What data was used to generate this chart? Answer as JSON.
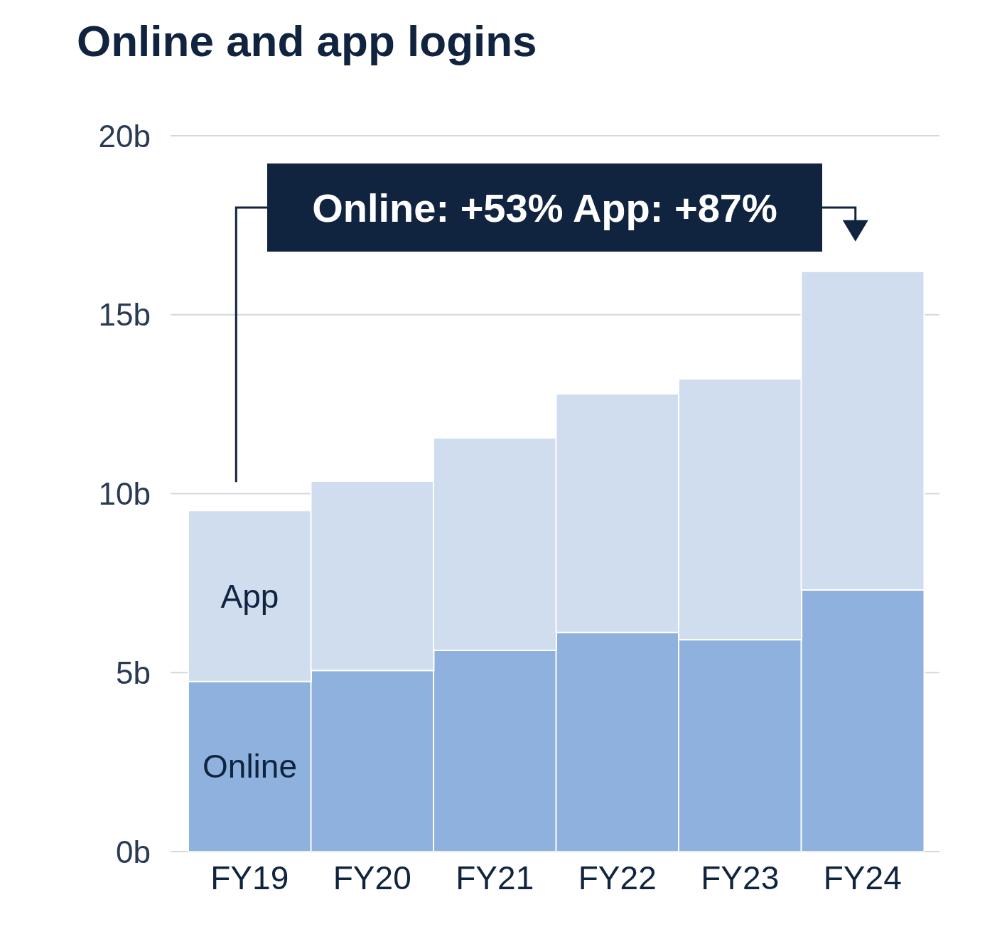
{
  "chart_data": {
    "type": "bar",
    "stacked": true,
    "title": "Online and app logins",
    "categories": [
      "FY19",
      "FY20",
      "FY21",
      "FY22",
      "FY23",
      "FY24"
    ],
    "series": [
      {
        "name": "Online",
        "color": "#8eb1dd",
        "values": [
          4.75,
          5.06,
          5.62,
          6.12,
          5.92,
          7.31
        ]
      },
      {
        "name": "App",
        "color": "#cfddef",
        "values": [
          4.78,
          5.29,
          5.94,
          6.67,
          7.29,
          8.9
        ]
      }
    ],
    "ylim": [
      0,
      20
    ],
    "yticks": [
      {
        "value": 0,
        "label": "0b"
      },
      {
        "value": 5,
        "label": "5b"
      },
      {
        "value": 10,
        "label": "10b"
      },
      {
        "value": 15,
        "label": "15b"
      },
      {
        "value": 20,
        "label": "20b"
      }
    ],
    "grid": "y",
    "legend": false,
    "annotations": [
      "Online: +53% App: +87%"
    ]
  }
}
